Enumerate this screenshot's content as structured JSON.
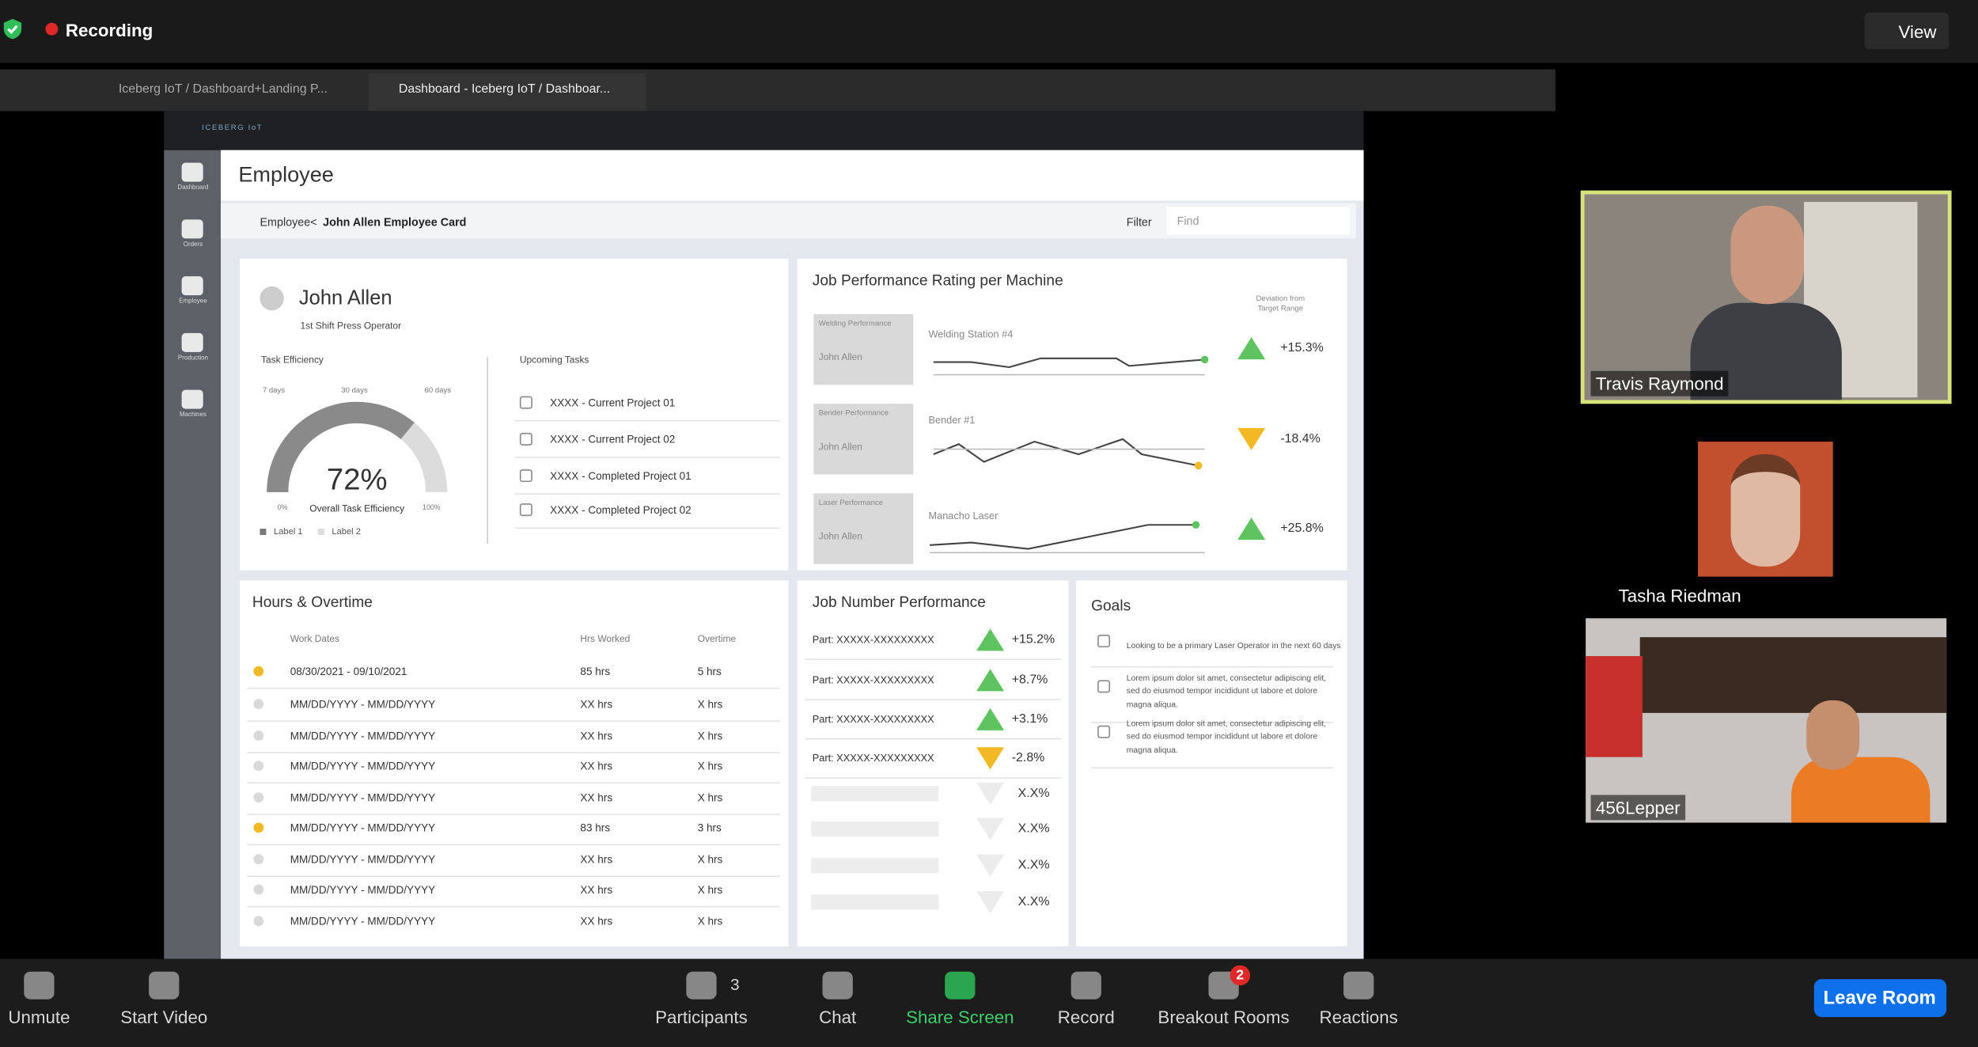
{
  "zoom": {
    "recording": "Recording",
    "view": "View",
    "controls": [
      {
        "label": "Unmute",
        "x": 31
      },
      {
        "label": "Start Video",
        "x": 130
      },
      {
        "label": "Participants",
        "x": 556
      },
      {
        "label": "Chat",
        "x": 664
      },
      {
        "label": "Share Screen",
        "x": 761
      },
      {
        "label": "Record",
        "x": 861
      },
      {
        "label": "Breakout Rooms",
        "x": 970
      },
      {
        "label": "Reactions",
        "x": 1077
      }
    ],
    "participant_count": "3",
    "breakout_badge": "2",
    "leave": "Leave Room",
    "participants": [
      "Travis Raymond",
      "Tasha Riedman",
      "456Lepper"
    ]
  },
  "browser": {
    "tabs": [
      "Iceberg IoT / Dashboard+Landing P...",
      "Dashboard - Iceberg IoT / Dashboar..."
    ]
  },
  "app": {
    "brand": "ICEBERG IoT",
    "nav": [
      "Dashboard",
      "Orders",
      "Employee",
      "Production",
      "Machines"
    ],
    "page_title": "Employee",
    "breadcrumb_prefix": "Employee<",
    "breadcrumb": "John Allen Employee Card",
    "filter": "Filter",
    "find": "Find"
  },
  "employee": {
    "name": "John Allen",
    "role": "1st Shift Press Operator",
    "efficiency_title": "Task Efficiency",
    "periods": [
      "7 days",
      "30 days",
      "60 days"
    ],
    "gauge": {
      "value": 72,
      "label": "72%",
      "min": {
        "value": 0,
        "label": "0%"
      },
      "max": {
        "value": 100,
        "label": "100%"
      },
      "caption": "Overall Task Efficiency"
    },
    "legend": [
      "Label 1",
      "Label 2"
    ],
    "tasks_title": "Upcoming Tasks",
    "tasks": [
      "XXXX - Current Project 01",
      "XXXX - Current Project 02",
      "XXXX - Completed Project 01",
      "XXXX - Completed Project 02"
    ]
  },
  "rating": {
    "title": "Job Performance Rating per Machine",
    "deviation_header": "Deviation from Target Range",
    "machines": [
      {
        "box": "Welding Performance",
        "person": "John Allen",
        "machine": "Welding Station #4",
        "deviation": "+15.3%"
      },
      {
        "box": "Bender Performance",
        "person": "John Allen",
        "machine": "Bender #1",
        "deviation": "-18.4%"
      },
      {
        "box": "Laser Performance",
        "person": "John Allen",
        "machine": "Manacho Laser",
        "deviation": "+25.8%"
      }
    ]
  },
  "hours": {
    "title": "Hours & Overtime",
    "headers": [
      "Work Dates",
      "Hrs Worked",
      "Overtime"
    ],
    "rows": [
      {
        "dates": "08/30/2021 - 09/10/2021",
        "hours": "85 hrs",
        "overtime": "5 hrs",
        "marker": "#f2b924"
      },
      {
        "dates": "MM/DD/YYYY - MM/DD/YYYY",
        "hours": "XX hrs",
        "overtime": "X hrs",
        "marker": "#d9d9d9"
      },
      {
        "dates": "MM/DD/YYYY - MM/DD/YYYY",
        "hours": "XX hrs",
        "overtime": "X hrs",
        "marker": "#d9d9d9"
      },
      {
        "dates": "MM/DD/YYYY - MM/DD/YYYY",
        "hours": "XX hrs",
        "overtime": "X hrs",
        "marker": "#d9d9d9"
      },
      {
        "dates": "MM/DD/YYYY - MM/DD/YYYY",
        "hours": "XX hrs",
        "overtime": "X hrs",
        "marker": "#d9d9d9"
      },
      {
        "dates": "MM/DD/YYYY - MM/DD/YYYY",
        "hours": "83 hrs",
        "overtime": "3 hrs",
        "marker": "#f2b924"
      },
      {
        "dates": "MM/DD/YYYY - MM/DD/YYYY",
        "hours": "XX hrs",
        "overtime": "X hrs",
        "marker": "#d9d9d9"
      },
      {
        "dates": "MM/DD/YYYY - MM/DD/YYYY",
        "hours": "XX hrs",
        "overtime": "X hrs",
        "marker": "#d9d9d9"
      },
      {
        "dates": "MM/DD/YYYY - MM/DD/YYYY",
        "hours": "XX hrs",
        "overtime": "X hrs",
        "marker": "#d9d9d9"
      }
    ]
  },
  "jobs": {
    "title": "Job Number Performance",
    "parts": [
      {
        "part": "Part: XXXXX-XXXXXXXXX",
        "change": "+15.2%"
      },
      {
        "part": "Part: XXXXX-XXXXXXXXX",
        "change": "+8.7%"
      },
      {
        "part": "Part: XXXXX-XXXXXXXXX",
        "change": "+3.1%"
      },
      {
        "part": "Part: XXXXX-XXXXXXXXX",
        "change": "-2.8%"
      }
    ],
    "placeholders": [
      "X.X%",
      "X.X%",
      "X.X%",
      "X.X%"
    ]
  },
  "goals": {
    "title": "Goals",
    "items": [
      "Looking to be a primary Laser Operator in the next 60 days",
      "Lorem ipsum dolor sit amet, consectetur adipiscing elit, sed do eiusmod tempor incididunt ut labore et dolore magna aliqua.",
      "Lorem ipsum dolor sit amet, consectetur adipiscing elit, sed do eiusmod tempor incididunt ut labore et dolore magna aliqua."
    ]
  }
}
